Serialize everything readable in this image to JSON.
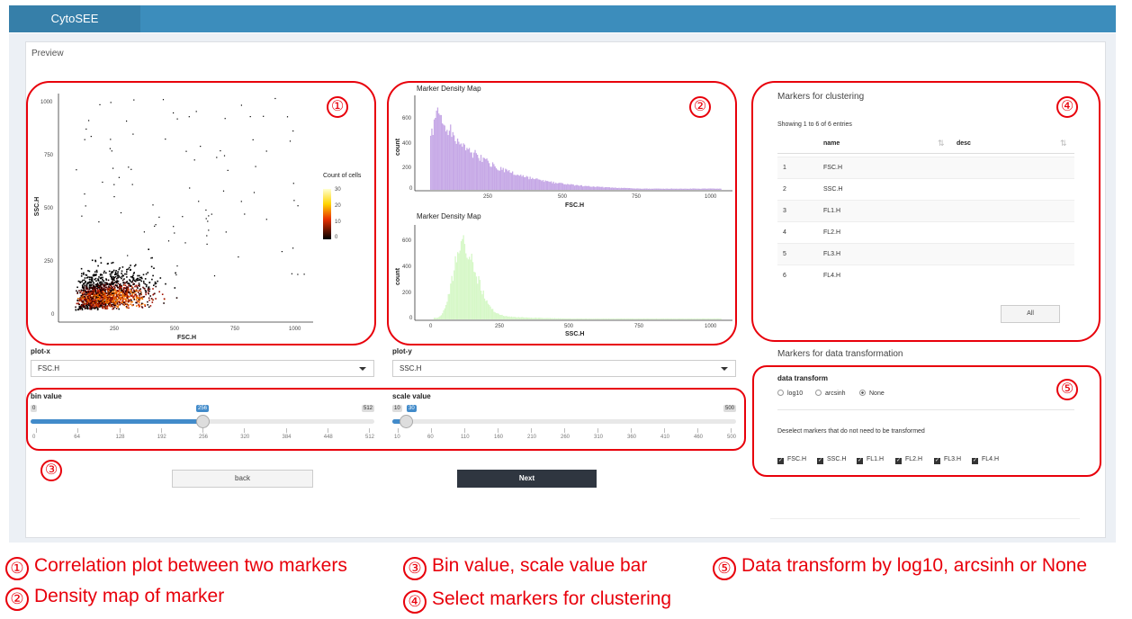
{
  "app": {
    "brand": "CytoSEE"
  },
  "preview": {
    "title": "Preview"
  },
  "scatter": {
    "x_label": "FSC.H",
    "y_label": "SSC.H",
    "x_ticks": [
      "250",
      "500",
      "750",
      "1000"
    ],
    "y_ticks": [
      "0",
      "250",
      "500",
      "750",
      "1000"
    ],
    "legend_title": "Count of cells",
    "legend_ticks": [
      "30",
      "20",
      "10",
      "0"
    ]
  },
  "density_fsc": {
    "title": "Marker Density Map",
    "x_label": "FSC.H",
    "y_label": "count",
    "x_ticks": [
      "250",
      "500",
      "750",
      "1000"
    ],
    "y_ticks": [
      "0",
      "200",
      "400",
      "600",
      "800"
    ],
    "color": "#c6a8e6"
  },
  "density_ssc": {
    "title": "Marker Density Map",
    "x_label": "SSC.H",
    "y_label": "count",
    "x_ticks": [
      "0",
      "250",
      "500",
      "750",
      "1000"
    ],
    "y_ticks": [
      "0",
      "200",
      "400",
      "600"
    ],
    "color": "#d6f8c7"
  },
  "controls": {
    "plot_x_label": "plot-x",
    "plot_x_value": "FSC.H",
    "plot_y_label": "plot-y",
    "plot_y_value": "SSC.H",
    "bin": {
      "label": "bin value",
      "min": "0",
      "max": "512",
      "value": "256",
      "fraction": 0.5,
      "grid": [
        "0",
        "64",
        "128",
        "192",
        "256",
        "320",
        "384",
        "448",
        "512"
      ]
    },
    "scale": {
      "label": "scale value",
      "min": "10",
      "max": "500",
      "value": "30",
      "fraction": 0.04,
      "grid": [
        "10",
        "60",
        "110",
        "160",
        "210",
        "260",
        "310",
        "360",
        "410",
        "460",
        "500"
      ]
    },
    "back_label": "back",
    "next_label": "Next"
  },
  "clustering": {
    "title": "Markers for clustering",
    "info": "Showing 1 to 6 of 6 entries",
    "col_name": "name",
    "col_desc": "desc",
    "rows": [
      {
        "idx": "1",
        "name": "FSC.H"
      },
      {
        "idx": "2",
        "name": "SSC.H"
      },
      {
        "idx": "3",
        "name": "FL1.H"
      },
      {
        "idx": "4",
        "name": "FL2.H"
      },
      {
        "idx": "5",
        "name": "FL3.H"
      },
      {
        "idx": "6",
        "name": "FL4.H"
      }
    ],
    "all_label": "All"
  },
  "transform": {
    "title": "Markers for data transformation",
    "label": "data transform",
    "options": [
      "log10",
      "arcsinh",
      "None"
    ],
    "selected": "None",
    "hint": "Deselect markers that do not need to be transformed",
    "markers": [
      "FSC.H",
      "SSC.H",
      "FL1.H",
      "FL2.H",
      "FL3.H",
      "FL4.H"
    ]
  },
  "annotations": {
    "n1": "①",
    "n2": "②",
    "n3": "③",
    "n4": "④",
    "n5": "⑤",
    "legend": [
      "Correlation plot between two markers",
      "Bin value, scale value bar",
      "Data transform by log10, arcsinh or None",
      "Density map of marker",
      "Select markers for clustering"
    ],
    "color": "#e8000b"
  }
}
